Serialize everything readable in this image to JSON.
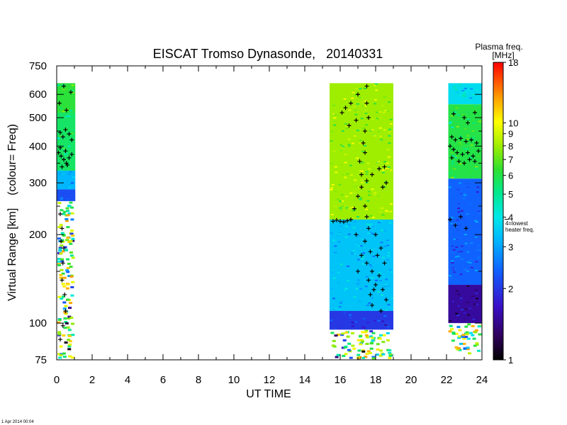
{
  "chart_data": {
    "type": "heatmap",
    "title": "EISCAT Tromso Dynasonde,   20140331",
    "xlabel": "UT TIME",
    "ylabel": "Virtual Range [km]    (colour= Freq)",
    "x_ticks": [
      "0",
      "2",
      "4",
      "6",
      "8",
      "10",
      "12",
      "14",
      "16",
      "18",
      "20",
      "22",
      "24"
    ],
    "x_range": [
      0,
      24
    ],
    "y_scale": "log",
    "y_range": [
      75,
      750
    ],
    "y_ticks": [
      75,
      100,
      200,
      300,
      400,
      500,
      600,
      750
    ],
    "y_tick_labels": [
      "75",
      "100",
      "200",
      "300",
      "400",
      "500",
      "600",
      "750"
    ],
    "colorbar": {
      "title": "Plasma freq.",
      "unit": "[MHz]",
      "scale": "log",
      "range": [
        1,
        18
      ],
      "ticks": [
        1,
        2,
        3,
        4,
        5,
        6,
        7,
        8,
        9,
        10,
        18
      ],
      "tick_labels": [
        "1",
        "2",
        "3",
        "4",
        "5",
        "6",
        "7",
        "8",
        "9",
        "10",
        "18"
      ],
      "annotation": "4=lowest heater freq.",
      "annotation_lines": [
        "4=lowest",
        "heater freq."
      ]
    },
    "data_blocks": [
      {
        "name": "block-0-1h",
        "ut_start": 0.0,
        "ut_end": 1.05,
        "range_top": 655,
        "layers": [
          {
            "r0": 655,
            "r1": 520,
            "f": 6.2
          },
          {
            "r0": 520,
            "r1": 330,
            "f": 5.6
          },
          {
            "r0": 330,
            "r1": 285,
            "f": 3.2
          },
          {
            "r0": 285,
            "r1": 260,
            "f": 2.2
          },
          {
            "r0": 260,
            "r1": 75,
            "f": 0,
            "sparse": true
          }
        ]
      },
      {
        "name": "block-15-19h",
        "ut_start": 15.4,
        "ut_end": 19.0,
        "range_top": 655,
        "layers": [
          {
            "r0": 655,
            "r1": 225,
            "f": 8.0
          },
          {
            "r0": 225,
            "r1": 110,
            "f": 3.4
          },
          {
            "r0": 110,
            "r1": 95,
            "f": 2.0
          },
          {
            "r0": 95,
            "r1": 75,
            "f": 0,
            "sparse": true
          }
        ]
      },
      {
        "name": "block-22-24h",
        "ut_start": 22.1,
        "ut_end": 24.0,
        "range_top": 655,
        "layers": [
          {
            "r0": 655,
            "r1": 555,
            "f": 3.8
          },
          {
            "r0": 555,
            "r1": 310,
            "f": 6.0
          },
          {
            "r0": 310,
            "r1": 135,
            "f": 2.4
          },
          {
            "r0": 135,
            "r1": 100,
            "f": 1.5
          },
          {
            "r0": 100,
            "r1": 78,
            "f": 0,
            "sparse": true
          }
        ]
      }
    ],
    "trace_points": [
      {
        "ut": 0.2,
        "r": 445
      },
      {
        "ut": 0.35,
        "r": 430
      },
      {
        "ut": 0.5,
        "r": 455
      },
      {
        "ut": 0.7,
        "r": 440
      },
      {
        "ut": 0.85,
        "r": 420
      },
      {
        "ut": 0.1,
        "r": 380
      },
      {
        "ut": 0.25,
        "r": 370
      },
      {
        "ut": 0.4,
        "r": 360
      },
      {
        "ut": 0.55,
        "r": 350
      },
      {
        "ut": 0.7,
        "r": 365
      },
      {
        "ut": 0.85,
        "r": 375
      },
      {
        "ut": 0.2,
        "r": 395
      },
      {
        "ut": 0.5,
        "r": 385
      },
      {
        "ut": 0.3,
        "r": 340
      },
      {
        "ut": 0.6,
        "r": 345
      },
      {
        "ut": 0.15,
        "r": 560
      },
      {
        "ut": 0.55,
        "r": 530
      },
      {
        "ut": 0.8,
        "r": 610
      },
      {
        "ut": 0.4,
        "r": 640
      },
      {
        "ut": 0.2,
        "r": 235
      },
      {
        "ut": 0.3,
        "r": 210
      },
      {
        "ut": 0.25,
        "r": 190
      },
      {
        "ut": 0.4,
        "r": 180
      },
      {
        "ut": 0.35,
        "r": 160
      },
      {
        "ut": 0.3,
        "r": 140
      },
      {
        "ut": 0.45,
        "r": 125
      },
      {
        "ut": 0.5,
        "r": 110
      },
      {
        "ut": 0.35,
        "r": 98
      },
      {
        "ut": 0.2,
        "r": 88
      },
      {
        "ut": 15.6,
        "r": 222
      },
      {
        "ut": 15.8,
        "r": 224
      },
      {
        "ut": 16.0,
        "r": 222
      },
      {
        "ut": 16.2,
        "r": 221
      },
      {
        "ut": 16.4,
        "r": 223
      },
      {
        "ut": 16.6,
        "r": 225
      },
      {
        "ut": 16.8,
        "r": 245
      },
      {
        "ut": 17.0,
        "r": 270
      },
      {
        "ut": 17.2,
        "r": 290
      },
      {
        "ut": 17.5,
        "r": 305
      },
      {
        "ut": 17.8,
        "r": 320
      },
      {
        "ut": 18.2,
        "r": 335
      },
      {
        "ut": 18.5,
        "r": 340
      },
      {
        "ut": 16.1,
        "r": 520
      },
      {
        "ut": 16.3,
        "r": 540
      },
      {
        "ut": 16.6,
        "r": 560
      },
      {
        "ut": 17.0,
        "r": 600
      },
      {
        "ut": 17.5,
        "r": 640
      },
      {
        "ut": 16.9,
        "r": 490
      },
      {
        "ut": 17.3,
        "r": 410
      },
      {
        "ut": 17.4,
        "r": 380
      },
      {
        "ut": 17.4,
        "r": 450
      },
      {
        "ut": 17.6,
        "r": 500
      },
      {
        "ut": 17.5,
        "r": 560
      },
      {
        "ut": 16.5,
        "r": 470
      },
      {
        "ut": 17.1,
        "r": 355
      },
      {
        "ut": 17.2,
        "r": 320
      },
      {
        "ut": 18.4,
        "r": 290
      },
      {
        "ut": 18.6,
        "r": 300
      },
      {
        "ut": 17.4,
        "r": 250
      },
      {
        "ut": 17.5,
        "r": 230
      },
      {
        "ut": 17.6,
        "r": 210
      },
      {
        "ut": 17.4,
        "r": 190
      },
      {
        "ut": 17.7,
        "r": 175
      },
      {
        "ut": 17.5,
        "r": 160
      },
      {
        "ut": 17.8,
        "r": 150
      },
      {
        "ut": 17.6,
        "r": 140
      },
      {
        "ut": 17.9,
        "r": 130
      },
      {
        "ut": 17.7,
        "r": 125
      },
      {
        "ut": 18.0,
        "r": 135
      },
      {
        "ut": 18.2,
        "r": 145
      },
      {
        "ut": 18.4,
        "r": 130
      },
      {
        "ut": 18.6,
        "r": 120
      },
      {
        "ut": 18.5,
        "r": 160
      },
      {
        "ut": 18.3,
        "r": 180
      },
      {
        "ut": 18.0,
        "r": 200
      },
      {
        "ut": 18.1,
        "r": 170
      },
      {
        "ut": 17.2,
        "r": 170
      },
      {
        "ut": 17.0,
        "r": 150
      },
      {
        "ut": 16.9,
        "r": 200
      },
      {
        "ut": 17.8,
        "r": 115
      },
      {
        "ut": 18.3,
        "r": 110
      },
      {
        "ut": 22.3,
        "r": 430
      },
      {
        "ut": 22.5,
        "r": 420
      },
      {
        "ut": 22.8,
        "r": 425
      },
      {
        "ut": 23.1,
        "r": 415
      },
      {
        "ut": 23.4,
        "r": 420
      },
      {
        "ut": 23.7,
        "r": 410
      },
      {
        "ut": 22.2,
        "r": 400
      },
      {
        "ut": 22.4,
        "r": 390
      },
      {
        "ut": 22.6,
        "r": 380
      },
      {
        "ut": 22.9,
        "r": 375
      },
      {
        "ut": 23.2,
        "r": 380
      },
      {
        "ut": 23.5,
        "r": 370
      },
      {
        "ut": 23.8,
        "r": 385
      },
      {
        "ut": 22.3,
        "r": 365
      },
      {
        "ut": 22.7,
        "r": 355
      },
      {
        "ut": 23.0,
        "r": 350
      },
      {
        "ut": 23.3,
        "r": 360
      },
      {
        "ut": 23.6,
        "r": 355
      },
      {
        "ut": 22.4,
        "r": 515
      },
      {
        "ut": 23.0,
        "r": 500
      },
      {
        "ut": 23.6,
        "r": 520
      },
      {
        "ut": 23.2,
        "r": 480
      },
      {
        "ut": 22.2,
        "r": 225
      },
      {
        "ut": 22.5,
        "r": 215
      },
      {
        "ut": 22.8,
        "r": 230
      },
      {
        "ut": 23.1,
        "r": 210
      }
    ],
    "grid": false,
    "legend": "colorbar right",
    "footer": "1 Apr 2014 00:04"
  }
}
